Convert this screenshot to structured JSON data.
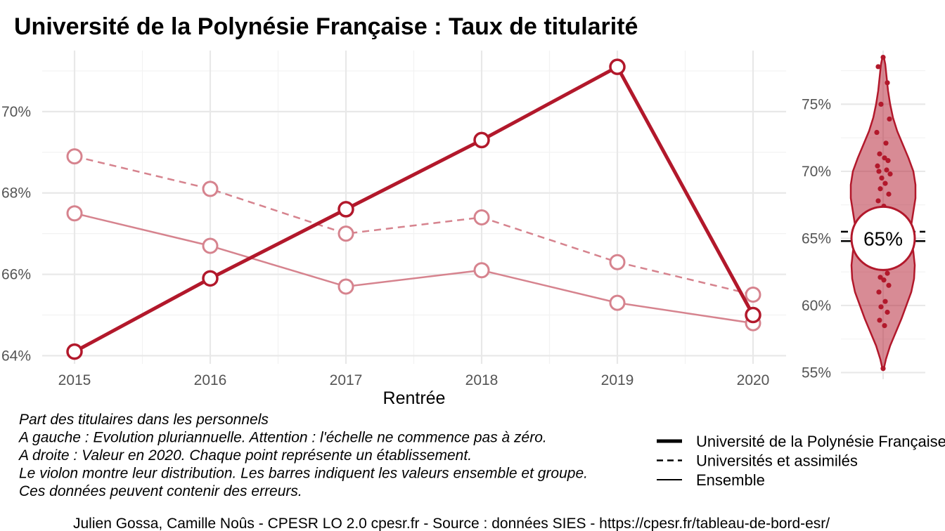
{
  "chart_data": [
    {
      "type": "line",
      "title": "Université de la Polynésie Française  :  Taux de titularité",
      "xlabel": "Rentrée",
      "ylabel": "",
      "x": [
        "2015",
        "2016",
        "2017",
        "2018",
        "2019",
        "2020"
      ],
      "ylim": [
        63.8,
        71.5
      ],
      "yticks": [
        "64%",
        "66%",
        "68%",
        "70%"
      ],
      "grid": true,
      "series": [
        {
          "name": "Université de la Polynésie Française",
          "style": "solid-thick",
          "color": "#b2182b",
          "values": [
            64.1,
            65.9,
            67.6,
            69.3,
            71.1,
            65.0
          ]
        },
        {
          "name": "Universités et assimilés",
          "style": "dashed",
          "color": "#d6838e",
          "values": [
            68.9,
            68.1,
            67.0,
            67.4,
            66.3,
            65.5
          ]
        },
        {
          "name": "Ensemble",
          "style": "solid-thin",
          "color": "#d6838e",
          "values": [
            67.5,
            66.7,
            65.7,
            66.1,
            65.3,
            64.8
          ]
        }
      ]
    },
    {
      "type": "scatter",
      "subtype": "violin",
      "ylim": [
        54.5,
        79
      ],
      "yticks": [
        "55%",
        "60%",
        "65%",
        "70%",
        "75%"
      ],
      "highlight_label": "65%",
      "highlight_value": 65.0,
      "ensemble_value": 64.8,
      "group_value": 65.5,
      "color": "#b2182b",
      "values": [
        78.5,
        77.8,
        76.6,
        75.0,
        73.9,
        72.9,
        72.1,
        71.3,
        71.0,
        70.8,
        70.4,
        70.1,
        70.0,
        69.8,
        69.5,
        69.1,
        68.7,
        68.3,
        67.8,
        67.4,
        66.9,
        66.4,
        66.0,
        65.6,
        65.2,
        64.8,
        64.4,
        64.0,
        63.6,
        63.2,
        62.8,
        62.4,
        62.1,
        61.9,
        61.5,
        61.0,
        60.3,
        59.9,
        59.5,
        58.9,
        58.5,
        55.3
      ]
    }
  ],
  "caption": [
    "Part des titulaires dans les personnels",
    "A gauche : Evolution pluriannuelle. Attention : l'échelle ne commence pas à zéro.",
    "A droite : Valeur en 2020. Chaque point représente un établissement.",
    "Le violon montre leur distribution. Les barres indiquent les valeurs ensemble et groupe.",
    "Ces données peuvent contenir des erreurs."
  ],
  "legend": [
    {
      "label": "Université de la Polynésie Française",
      "style": "solid-thick"
    },
    {
      "label": "Universités et assimilés",
      "style": "dashed"
    },
    {
      "label": "Ensemble",
      "style": "solid-thin"
    }
  ],
  "credit": "Julien Gossa, Camille Noûs - CPESR LO 2.0 cpesr.fr - Source : données SIES - https://cpesr.fr/tableau-de-bord-esr/"
}
